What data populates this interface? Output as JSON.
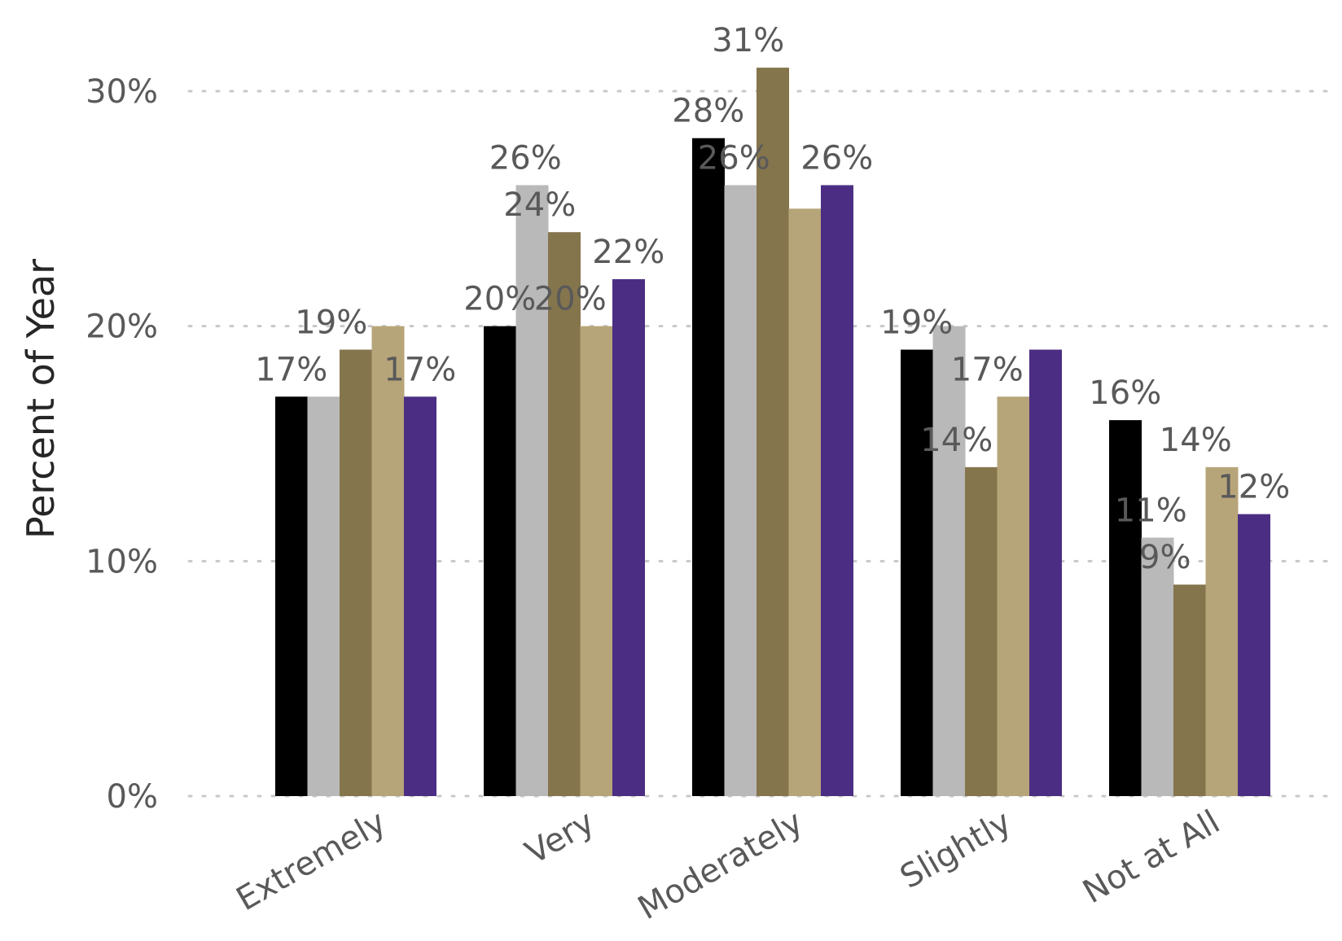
{
  "chart_data": {
    "type": "bar",
    "categories": [
      "Extremely",
      "Very",
      "Moderately",
      "Slightly",
      "Not at All"
    ],
    "series": [
      {
        "color": "#000000",
        "values": [
          17,
          20,
          28,
          19,
          16
        ]
      },
      {
        "color": "#b9b9b9",
        "values": [
          17,
          26,
          26,
          20,
          11
        ]
      },
      {
        "color": "#85754d",
        "values": [
          19,
          24,
          31,
          14,
          9
        ]
      },
      {
        "color": "#b7a57a",
        "values": [
          20,
          20,
          25,
          17,
          14
        ]
      },
      {
        "color": "#4b2e83",
        "values": [
          17,
          22,
          26,
          19,
          12
        ]
      }
    ],
    "data_labels": [
      [
        "17%",
        null,
        "19%",
        null,
        "17%"
      ],
      [
        "20%",
        "26%",
        "24%",
        "20%",
        "22%"
      ],
      [
        "28%",
        "26%",
        "31%",
        null,
        "26%"
      ],
      [
        "19%",
        null,
        "14%",
        "17%",
        null
      ],
      [
        "16%",
        "11%",
        "9%",
        "14%",
        "12%"
      ]
    ],
    "ylabel": "Percent of Year",
    "ylim": [
      0,
      30
    ],
    "yticks": [
      0,
      10,
      20,
      30
    ],
    "ytick_labels": [
      "0%",
      "10%",
      "20%",
      "30%"
    ],
    "grid": true
  }
}
